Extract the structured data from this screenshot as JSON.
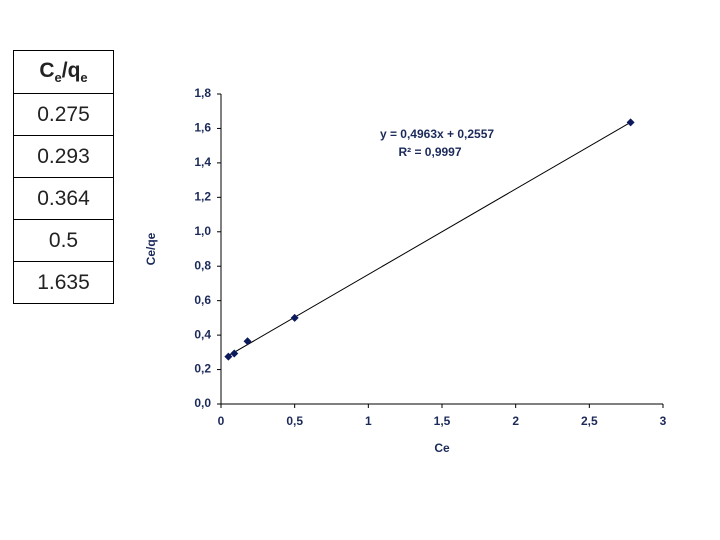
{
  "table": {
    "header": [
      "C",
      "e",
      "/q",
      "e"
    ],
    "rows": [
      "0.275",
      "0.293",
      "0.364",
      "0.5",
      "1.635"
    ]
  },
  "chart_data": {
    "type": "scatter",
    "x": [
      0.05,
      0.09,
      0.18,
      0.5,
      2.78
    ],
    "values": [
      0.275,
      0.293,
      0.364,
      0.5,
      1.635
    ],
    "color": "#0c1a5c",
    "x_label": "Ce",
    "y_label": "Ce/qe",
    "xlim": [
      0,
      3
    ],
    "xticks": [
      0,
      {
        "value": 0.5,
        "label": "0,5"
      },
      1,
      {
        "value": 1.5,
        "label": "1,5"
      },
      2,
      {
        "value": 2.5,
        "label": "2,5"
      },
      3
    ],
    "ylim": [
      0,
      1.8
    ],
    "yticks": [
      {
        "value": 0,
        "label": "0,0"
      },
      {
        "value": 0.2,
        "label": "0,2"
      },
      {
        "value": 0.4,
        "label": "0,4"
      },
      {
        "value": 0.6,
        "label": "0,6"
      },
      {
        "value": 0.8,
        "label": "0,8"
      },
      {
        "value": 1.0,
        "label": "1,0"
      },
      {
        "value": 1.2,
        "label": "1,2"
      },
      {
        "value": 1.4,
        "label": "1,4"
      },
      {
        "value": 1.6,
        "label": "1,6"
      },
      {
        "value": 1.8,
        "label": "1,8"
      }
    ],
    "trendline": {
      "slope": 0.4963,
      "intercept": 0.2557,
      "color": "#000000"
    },
    "annotations": [
      "y = 0,4963x + 0,2557",
      "R² = 0,9997"
    ]
  }
}
